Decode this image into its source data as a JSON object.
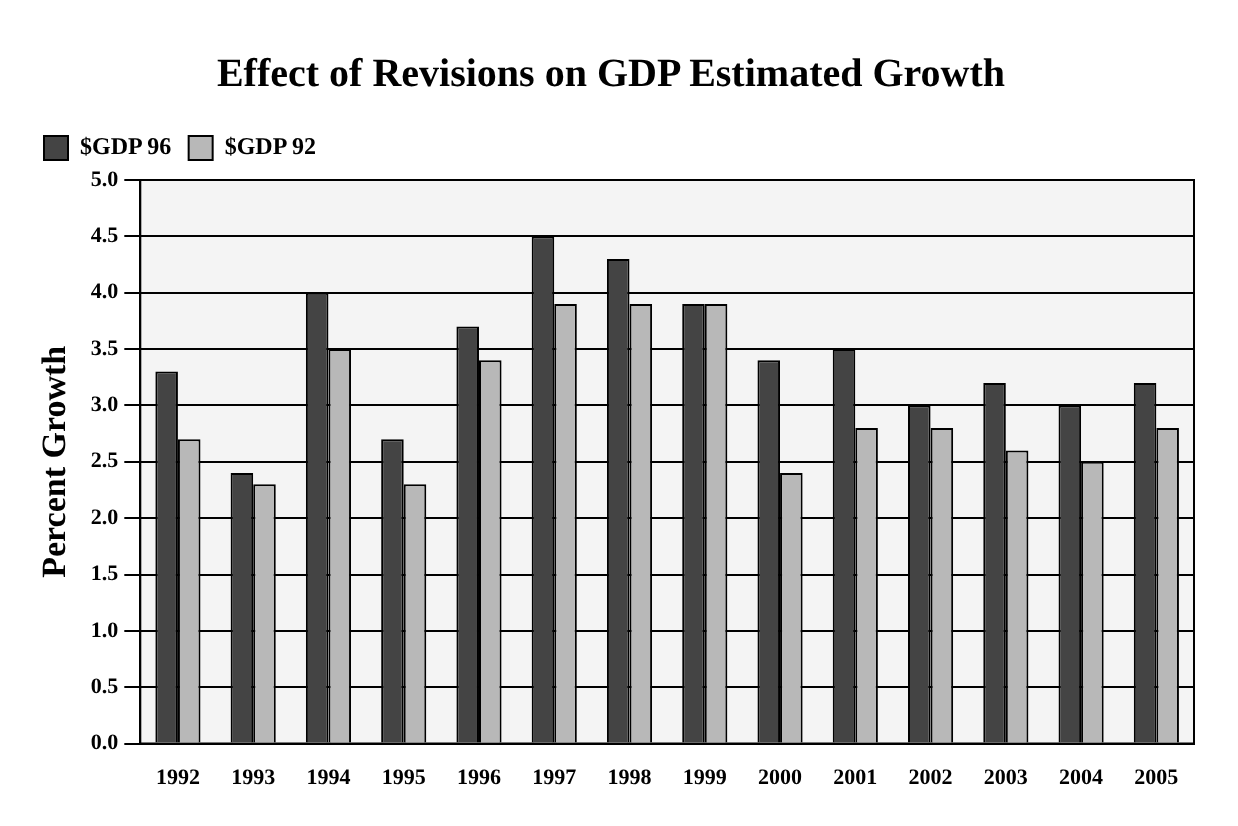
{
  "chart_data": {
    "type": "bar",
    "title": "Effect of Revisions on GDP Estimated Growth",
    "ylabel": "Percent Growth",
    "categories": [
      "1992",
      "1993",
      "1994",
      "1995",
      "1996",
      "1997",
      "1998",
      "1999",
      "2000",
      "2001",
      "2002",
      "2003",
      "2004",
      "2005"
    ],
    "series": [
      {
        "name": "$GDP 96",
        "color": "#444444",
        "values": [
          3.3,
          2.4,
          4.0,
          2.7,
          3.7,
          4.5,
          4.3,
          3.9,
          3.4,
          3.5,
          3.0,
          3.2,
          3.0,
          3.2
        ]
      },
      {
        "name": "$GDP 92",
        "color": "#b8b8b8",
        "values": [
          2.7,
          2.3,
          3.5,
          2.3,
          3.4,
          3.9,
          3.9,
          3.9,
          2.4,
          2.8,
          2.8,
          2.6,
          2.5,
          2.8
        ]
      }
    ],
    "ylim": [
      0,
      5
    ],
    "yticks": [
      {
        "value": 0,
        "label": "0.0"
      },
      {
        "value": 0.5,
        "label": "0.5"
      },
      {
        "value": 1,
        "label": "1.0"
      },
      {
        "value": 1.5,
        "label": "1.5"
      },
      {
        "value": 2,
        "label": "2.0"
      },
      {
        "value": 2.5,
        "label": "2.5"
      },
      {
        "value": 3,
        "label": "3.0"
      },
      {
        "value": 3.5,
        "label": "3.5"
      },
      {
        "value": 4,
        "label": "4.0"
      },
      {
        "value": 4.5,
        "label": "4.5"
      },
      {
        "value": 5,
        "label": "5.0"
      }
    ],
    "grid": "y",
    "legend": "top left"
  }
}
